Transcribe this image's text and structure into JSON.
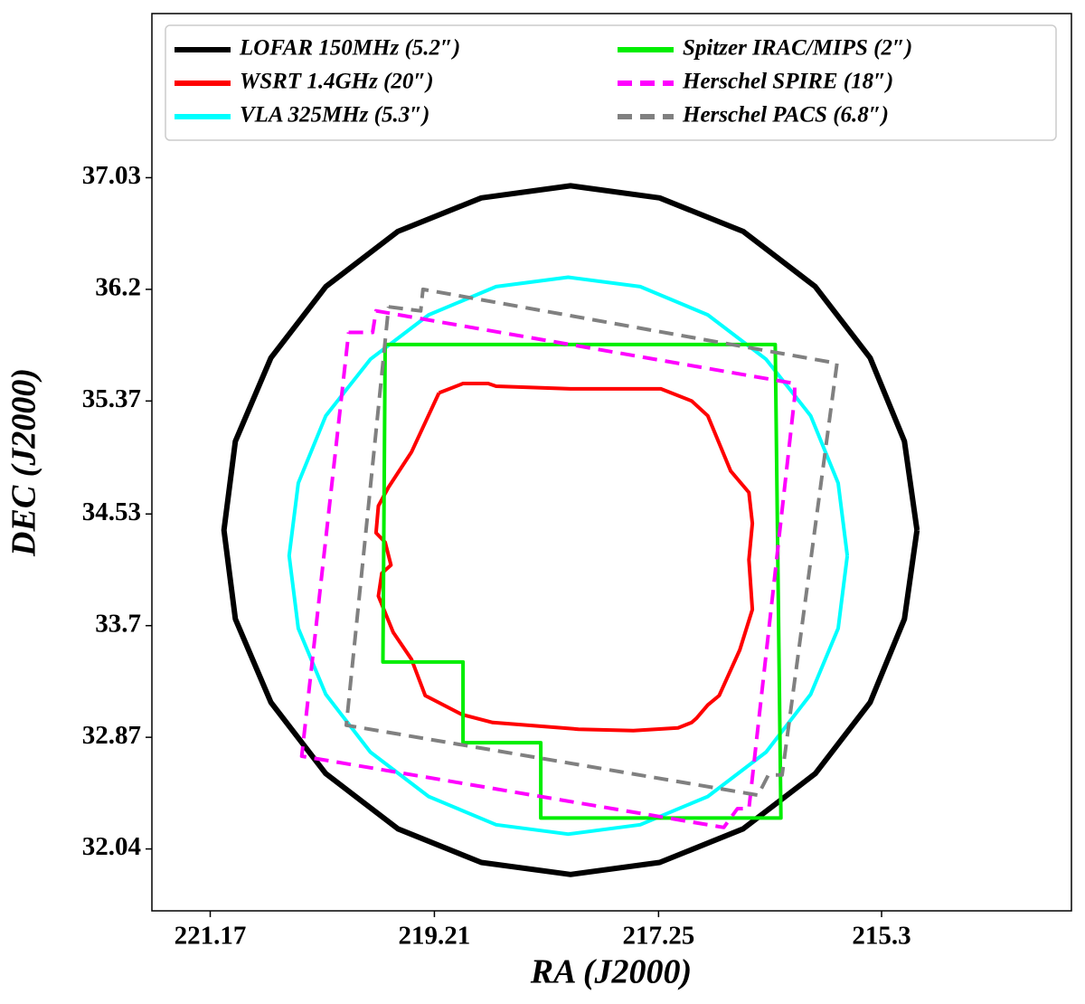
{
  "chart_data": {
    "type": "line",
    "xlabel": "RA (J2000)",
    "ylabel": "DEC (J2000)",
    "xlim": [
      221.68,
      213.64
    ],
    "ylim": [
      31.58,
      38.25
    ],
    "xticks": [
      221.17,
      219.21,
      217.25,
      215.3
    ],
    "yticks": [
      37.03,
      36.2,
      35.37,
      34.53,
      33.7,
      32.87,
      32.04
    ],
    "legend": "upper center",
    "series": [
      {
        "name": "LOFAR 150MHz (5.2″)",
        "color": "#000000",
        "linestyle": "solid",
        "x": [
          214.99,
          215.1,
          215.4,
          215.88,
          216.51,
          217.24,
          218.02,
          218.8,
          219.53,
          220.16,
          220.64,
          220.95,
          221.05,
          220.95,
          220.64,
          220.16,
          219.53,
          218.8,
          218.02,
          217.24,
          216.51,
          215.88,
          215.4,
          215.1,
          214.99
        ],
        "y": [
          34.41,
          35.07,
          35.69,
          36.22,
          36.63,
          36.88,
          36.97,
          36.88,
          36.63,
          36.22,
          35.69,
          35.07,
          34.41,
          33.75,
          33.13,
          32.6,
          32.19,
          31.94,
          31.85,
          31.94,
          32.19,
          32.6,
          33.13,
          33.75,
          34.41
        ]
      },
      {
        "name": "WSRT 1.4GHz (20″)",
        "color": "#ff0000",
        "linestyle": "solid",
        "x": [
          219.17,
          218.96,
          218.74,
          218.67,
          218.02,
          217.23,
          216.96,
          216.82,
          216.62,
          216.46,
          216.43,
          216.46,
          216.43,
          216.54,
          216.72,
          216.82,
          216.92,
          216.96,
          217.08,
          217.47,
          217.95,
          218.7,
          218.97,
          219.29,
          219.41,
          219.57,
          219.7,
          219.67,
          219.59,
          219.64,
          219.72,
          219.7,
          219.61,
          219.41,
          219.17
        ],
        "y": [
          35.43,
          35.5,
          35.5,
          35.48,
          35.46,
          35.46,
          35.37,
          35.26,
          34.85,
          34.69,
          34.46,
          34.19,
          33.82,
          33.52,
          33.18,
          33.11,
          33.01,
          32.98,
          32.94,
          32.92,
          32.93,
          32.98,
          33.04,
          33.18,
          33.45,
          33.65,
          33.92,
          34.09,
          34.15,
          34.32,
          34.39,
          34.59,
          34.73,
          34.99,
          35.43
        ]
      },
      {
        "name": "VLA 325MHz (5.3″)",
        "color": "#00ffff",
        "linestyle": "solid",
        "x": [
          215.6,
          215.68,
          215.92,
          216.31,
          216.82,
          217.41,
          218.04,
          218.67,
          219.26,
          219.77,
          220.16,
          220.4,
          220.48,
          220.4,
          220.16,
          219.77,
          219.26,
          218.67,
          218.04,
          217.41,
          216.82,
          216.31,
          215.92,
          215.68,
          215.6
        ],
        "y": [
          34.22,
          34.76,
          35.26,
          35.68,
          36.01,
          36.22,
          36.29,
          36.22,
          36.01,
          35.68,
          35.26,
          34.76,
          34.22,
          33.68,
          33.19,
          32.76,
          32.43,
          32.22,
          32.15,
          32.22,
          32.43,
          32.76,
          33.19,
          33.68,
          34.22
        ]
      },
      {
        "name": "Spitzer IRAC/MIPS (2″)",
        "color": "#00ee00",
        "linestyle": "solid",
        "x": [
          219.64,
          216.23,
          216.18,
          218.28,
          218.28,
          218.96,
          218.96,
          219.66,
          219.64
        ],
        "y": [
          35.79,
          35.79,
          32.27,
          32.27,
          32.83,
          32.83,
          33.43,
          33.43,
          35.79
        ]
      },
      {
        "name": "Herschel SPIRE (18″)",
        "color": "#ff00ff",
        "linestyle": "dashed",
        "x": [
          219.96,
          219.75,
          219.72,
          216.06,
          216.06,
          216.46,
          216.56,
          216.68,
          220.37,
          219.96
        ],
        "y": [
          35.88,
          35.88,
          36.04,
          35.5,
          35.4,
          32.34,
          32.34,
          32.2,
          32.73,
          35.88
        ]
      },
      {
        "name": "Herschel PACS (6.8″)",
        "color": "#808080",
        "linestyle": "dashed",
        "x": [
          219.61,
          219.33,
          219.31,
          215.69,
          216.17,
          216.29,
          216.38,
          219.98,
          219.61
        ],
        "y": [
          36.07,
          36.04,
          36.2,
          35.65,
          32.59,
          32.59,
          32.44,
          32.96,
          36.07
        ]
      }
    ]
  }
}
